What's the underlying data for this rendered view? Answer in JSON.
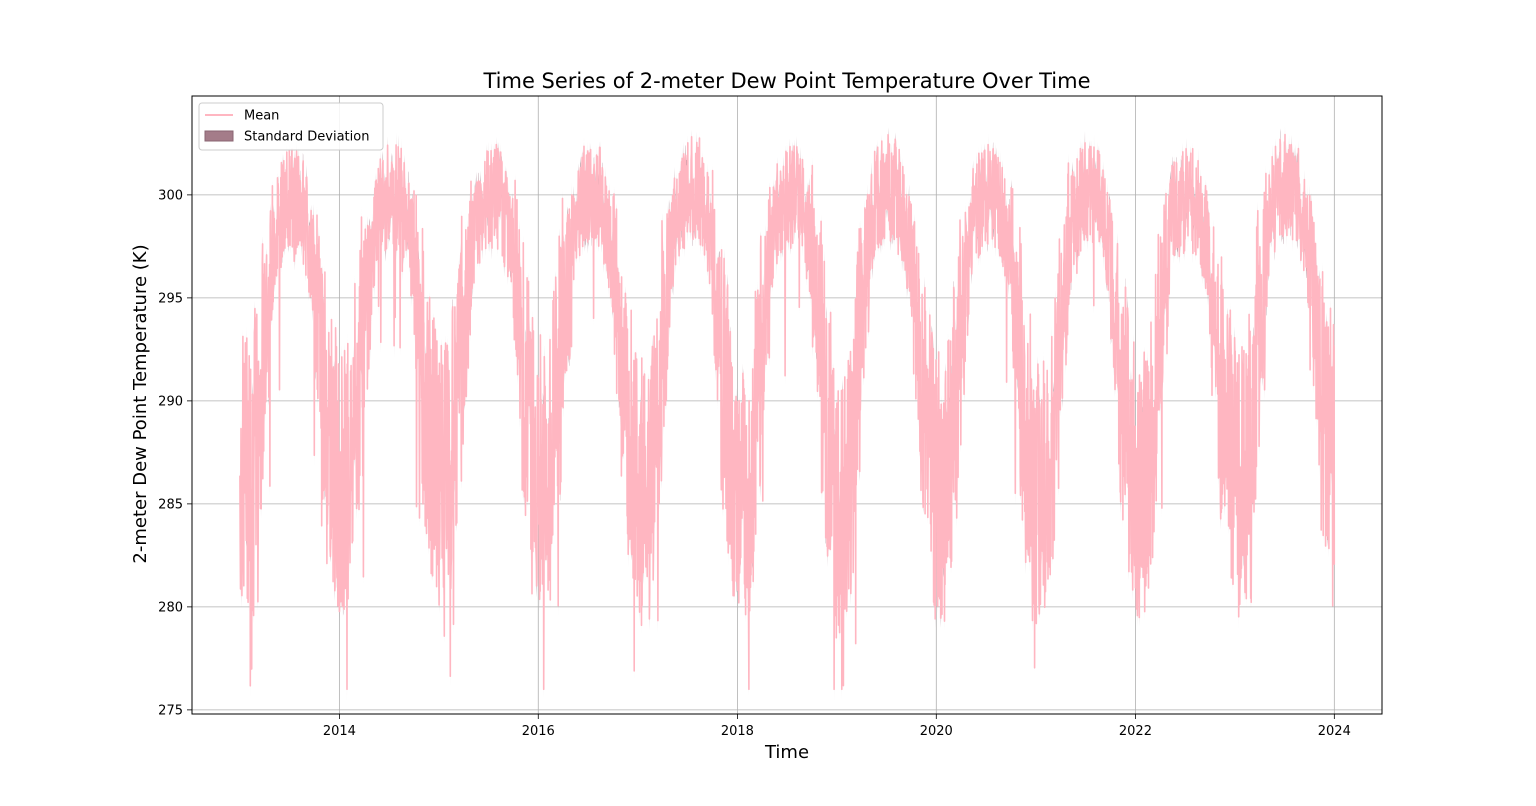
{
  "chart_data": {
    "type": "area",
    "title": "Time Series of 2-meter Dew Point Temperature Over Time",
    "xlabel": "Time",
    "ylabel": "2-meter Dew Point Temperature (K)",
    "xlim": [
      "2012-07-09",
      "2024-06-24"
    ],
    "ylim": [
      274.8,
      304.8
    ],
    "x_ticks": [
      "2014",
      "2016",
      "2018",
      "2020",
      "2022",
      "2024"
    ],
    "y_ticks": [
      275,
      280,
      285,
      290,
      295,
      300
    ],
    "grid": true,
    "legend": {
      "placement": "upper left",
      "entries": [
        {
          "label": "Mean",
          "kind": "line",
          "color": "#ffb6c1"
        },
        {
          "label": "Standard Deviation",
          "kind": "band",
          "color": "#a47c89"
        }
      ]
    },
    "series": [
      {
        "name": "Mean",
        "color": "#ffb6c1",
        "x": [
          "2013-01-01",
          "2013-02-15",
          "2013-04-01",
          "2013-05-15",
          "2013-07-01",
          "2013-08-15",
          "2013-10-01",
          "2013-11-15",
          "2014-01-01",
          "2014-02-15",
          "2014-04-01",
          "2014-05-15",
          "2014-07-01",
          "2014-08-15",
          "2014-10-01",
          "2014-11-15",
          "2015-01-01",
          "2015-02-15",
          "2015-04-01",
          "2015-05-15",
          "2015-07-01",
          "2015-08-15",
          "2015-10-01",
          "2015-11-15",
          "2016-01-01",
          "2016-02-15",
          "2016-04-01",
          "2016-05-15",
          "2016-07-01",
          "2016-08-15",
          "2016-10-01",
          "2016-11-15",
          "2017-01-01",
          "2017-02-15",
          "2017-04-01",
          "2017-05-15",
          "2017-07-01",
          "2017-08-15",
          "2017-10-01",
          "2017-11-15",
          "2018-01-01",
          "2018-02-15",
          "2018-04-01",
          "2018-05-15",
          "2018-07-01",
          "2018-08-15",
          "2018-10-01",
          "2018-11-15",
          "2019-01-01",
          "2019-02-15",
          "2019-04-01",
          "2019-05-15",
          "2019-07-01",
          "2019-08-15",
          "2019-10-01",
          "2019-11-15",
          "2020-01-01",
          "2020-02-15",
          "2020-04-01",
          "2020-05-15",
          "2020-07-01",
          "2020-08-15",
          "2020-10-01",
          "2020-11-15",
          "2021-01-01",
          "2021-02-15",
          "2021-04-01",
          "2021-05-15",
          "2021-07-01",
          "2021-08-15",
          "2021-10-01",
          "2021-11-15",
          "2022-01-01",
          "2022-02-15",
          "2022-04-01",
          "2022-05-15",
          "2022-07-01",
          "2022-08-15",
          "2022-10-01",
          "2022-11-15",
          "2023-01-01",
          "2023-02-15",
          "2023-04-01",
          "2023-05-15",
          "2023-07-01",
          "2023-08-15",
          "2023-10-01",
          "2023-11-15",
          "2024-01-01"
        ],
        "y": [
          286.5,
          287.0,
          292.5,
          298.5,
          299.8,
          299.6,
          296.5,
          289.5,
          286.0,
          287.5,
          293.5,
          298.8,
          300.0,
          299.8,
          297.0,
          289.5,
          286.5,
          287.5,
          293.0,
          298.5,
          300.0,
          299.8,
          297.5,
          290.5,
          286.5,
          287.0,
          293.5,
          299.0,
          300.2,
          300.0,
          297.0,
          290.0,
          285.5,
          285.5,
          292.5,
          298.8,
          300.3,
          300.2,
          297.5,
          290.0,
          285.5,
          285.5,
          292.5,
          298.8,
          300.0,
          299.8,
          297.5,
          290.5,
          285.0,
          285.5,
          293.5,
          299.5,
          300.5,
          300.0,
          297.0,
          290.0,
          285.5,
          286.5,
          293.0,
          299.0,
          300.0,
          299.8,
          297.0,
          290.0,
          285.5,
          285.5,
          293.5,
          299.0,
          300.2,
          300.0,
          297.5,
          290.5,
          286.0,
          286.5,
          293.5,
          299.0,
          299.8,
          299.6,
          297.0,
          290.0,
          286.5,
          286.5,
          293.5,
          299.5,
          300.5,
          300.2,
          297.0,
          290.0,
          288.0
        ]
      }
    ]
  }
}
